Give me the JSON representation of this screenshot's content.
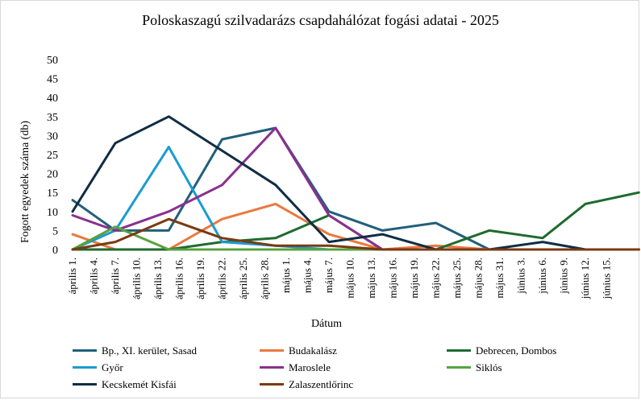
{
  "chart_data": {
    "type": "line",
    "title": "Poloskaszagú szilvadarázs csapdahálózat fogási adatai - 2025",
    "xlabel": "Dátum",
    "ylabel": "Fogott egyedek száma (db)",
    "ylim": [
      0,
      50
    ],
    "yticks": [
      "0",
      "5",
      "10",
      "15",
      "20",
      "25",
      "30",
      "35",
      "40",
      "45",
      "50"
    ],
    "grid": false,
    "legend_position": "bottom",
    "categories": [
      "április 1.",
      "április 4.",
      "április 7.",
      "április 10.",
      "április 13.",
      "április 16.",
      "április 19.",
      "április 22.",
      "április 25.",
      "április 28.",
      "május 1.",
      "május 4.",
      "május 7.",
      "május 10.",
      "május 13.",
      "május 16.",
      "május 19.",
      "május 22.",
      "május 25.",
      "május 28.",
      "május 31.",
      "június 3.",
      "június 6.",
      "június 9.",
      "június 12.",
      "június 15."
    ],
    "series": [
      {
        "name": "Bp., XI. kerület, Sasad",
        "color": "#215f7a",
        "points": [
          [
            0,
            13
          ],
          [
            2,
            5
          ],
          [
            4.5,
            5
          ],
          [
            7,
            29
          ],
          [
            9.5,
            32
          ],
          [
            12,
            10
          ],
          [
            14.5,
            5
          ],
          [
            17,
            7
          ],
          [
            19.5,
            0
          ],
          [
            24,
            0
          ],
          [
            26.5,
            0
          ]
        ]
      },
      {
        "name": "Budakalász",
        "color": "#e9793f",
        "points": [
          [
            0,
            4
          ],
          [
            2,
            0
          ],
          [
            4.5,
            0
          ],
          [
            7,
            8
          ],
          [
            9.5,
            12
          ],
          [
            12,
            4
          ],
          [
            14.5,
            0
          ],
          [
            17,
            1
          ],
          [
            19.5,
            0
          ],
          [
            24,
            0
          ],
          [
            26.5,
            0
          ]
        ]
      },
      {
        "name": "Debrecen, Dombos",
        "color": "#1e6b2e",
        "points": [
          [
            0,
            0
          ],
          [
            2,
            0
          ],
          [
            4.5,
            0
          ],
          [
            7,
            2
          ],
          [
            9.5,
            3
          ],
          [
            12,
            9
          ],
          [
            14.5,
            0
          ],
          [
            17,
            0
          ],
          [
            19.5,
            5
          ],
          [
            22,
            3
          ],
          [
            24,
            12
          ],
          [
            26.5,
            15
          ]
        ]
      },
      {
        "name": "Győr",
        "color": "#1b9bd1",
        "points": [
          [
            0,
            0
          ],
          [
            2,
            5
          ],
          [
            4.5,
            27
          ],
          [
            7,
            2
          ],
          [
            9.5,
            1
          ],
          [
            12,
            0
          ],
          [
            14.5,
            0
          ],
          [
            17,
            0
          ],
          [
            19.5,
            0
          ],
          [
            24,
            0
          ],
          [
            26.5,
            0
          ]
        ]
      },
      {
        "name": "Maroslele",
        "color": "#8b2f8f",
        "points": [
          [
            0,
            9
          ],
          [
            2,
            5
          ],
          [
            4.5,
            10
          ],
          [
            7,
            17
          ],
          [
            9.5,
            32
          ],
          [
            12,
            9
          ],
          [
            14.5,
            0
          ],
          [
            17,
            0
          ],
          [
            19.5,
            0
          ],
          [
            24,
            0
          ],
          [
            26.5,
            0
          ]
        ]
      },
      {
        "name": "Siklós",
        "color": "#57a33f",
        "points": [
          [
            0,
            0
          ],
          [
            2,
            6
          ],
          [
            4.5,
            0
          ],
          [
            7,
            0
          ],
          [
            9.5,
            0
          ],
          [
            12,
            0
          ],
          [
            14.5,
            0
          ],
          [
            17,
            0
          ],
          [
            19.5,
            0
          ],
          [
            24,
            0
          ],
          [
            26.5,
            0
          ]
        ]
      },
      {
        "name": "Kecskemét Kisfái",
        "color": "#0f2d44",
        "points": [
          [
            0,
            10
          ],
          [
            2,
            28
          ],
          [
            4.5,
            35
          ],
          [
            7,
            26
          ],
          [
            9.5,
            17
          ],
          [
            12,
            2
          ],
          [
            14.5,
            4
          ],
          [
            17,
            0
          ],
          [
            19.5,
            0
          ],
          [
            22,
            2
          ],
          [
            24,
            0
          ],
          [
            26.5,
            0
          ]
        ]
      },
      {
        "name": "Zalaszentlőrinc",
        "color": "#7a3a12",
        "points": [
          [
            0,
            0
          ],
          [
            2,
            2
          ],
          [
            4.5,
            8
          ],
          [
            7,
            3
          ],
          [
            9.5,
            1
          ],
          [
            12,
            1
          ],
          [
            14.5,
            0
          ],
          [
            17,
            0
          ],
          [
            19.5,
            0
          ],
          [
            24,
            0
          ],
          [
            26.5,
            0
          ]
        ]
      }
    ]
  }
}
